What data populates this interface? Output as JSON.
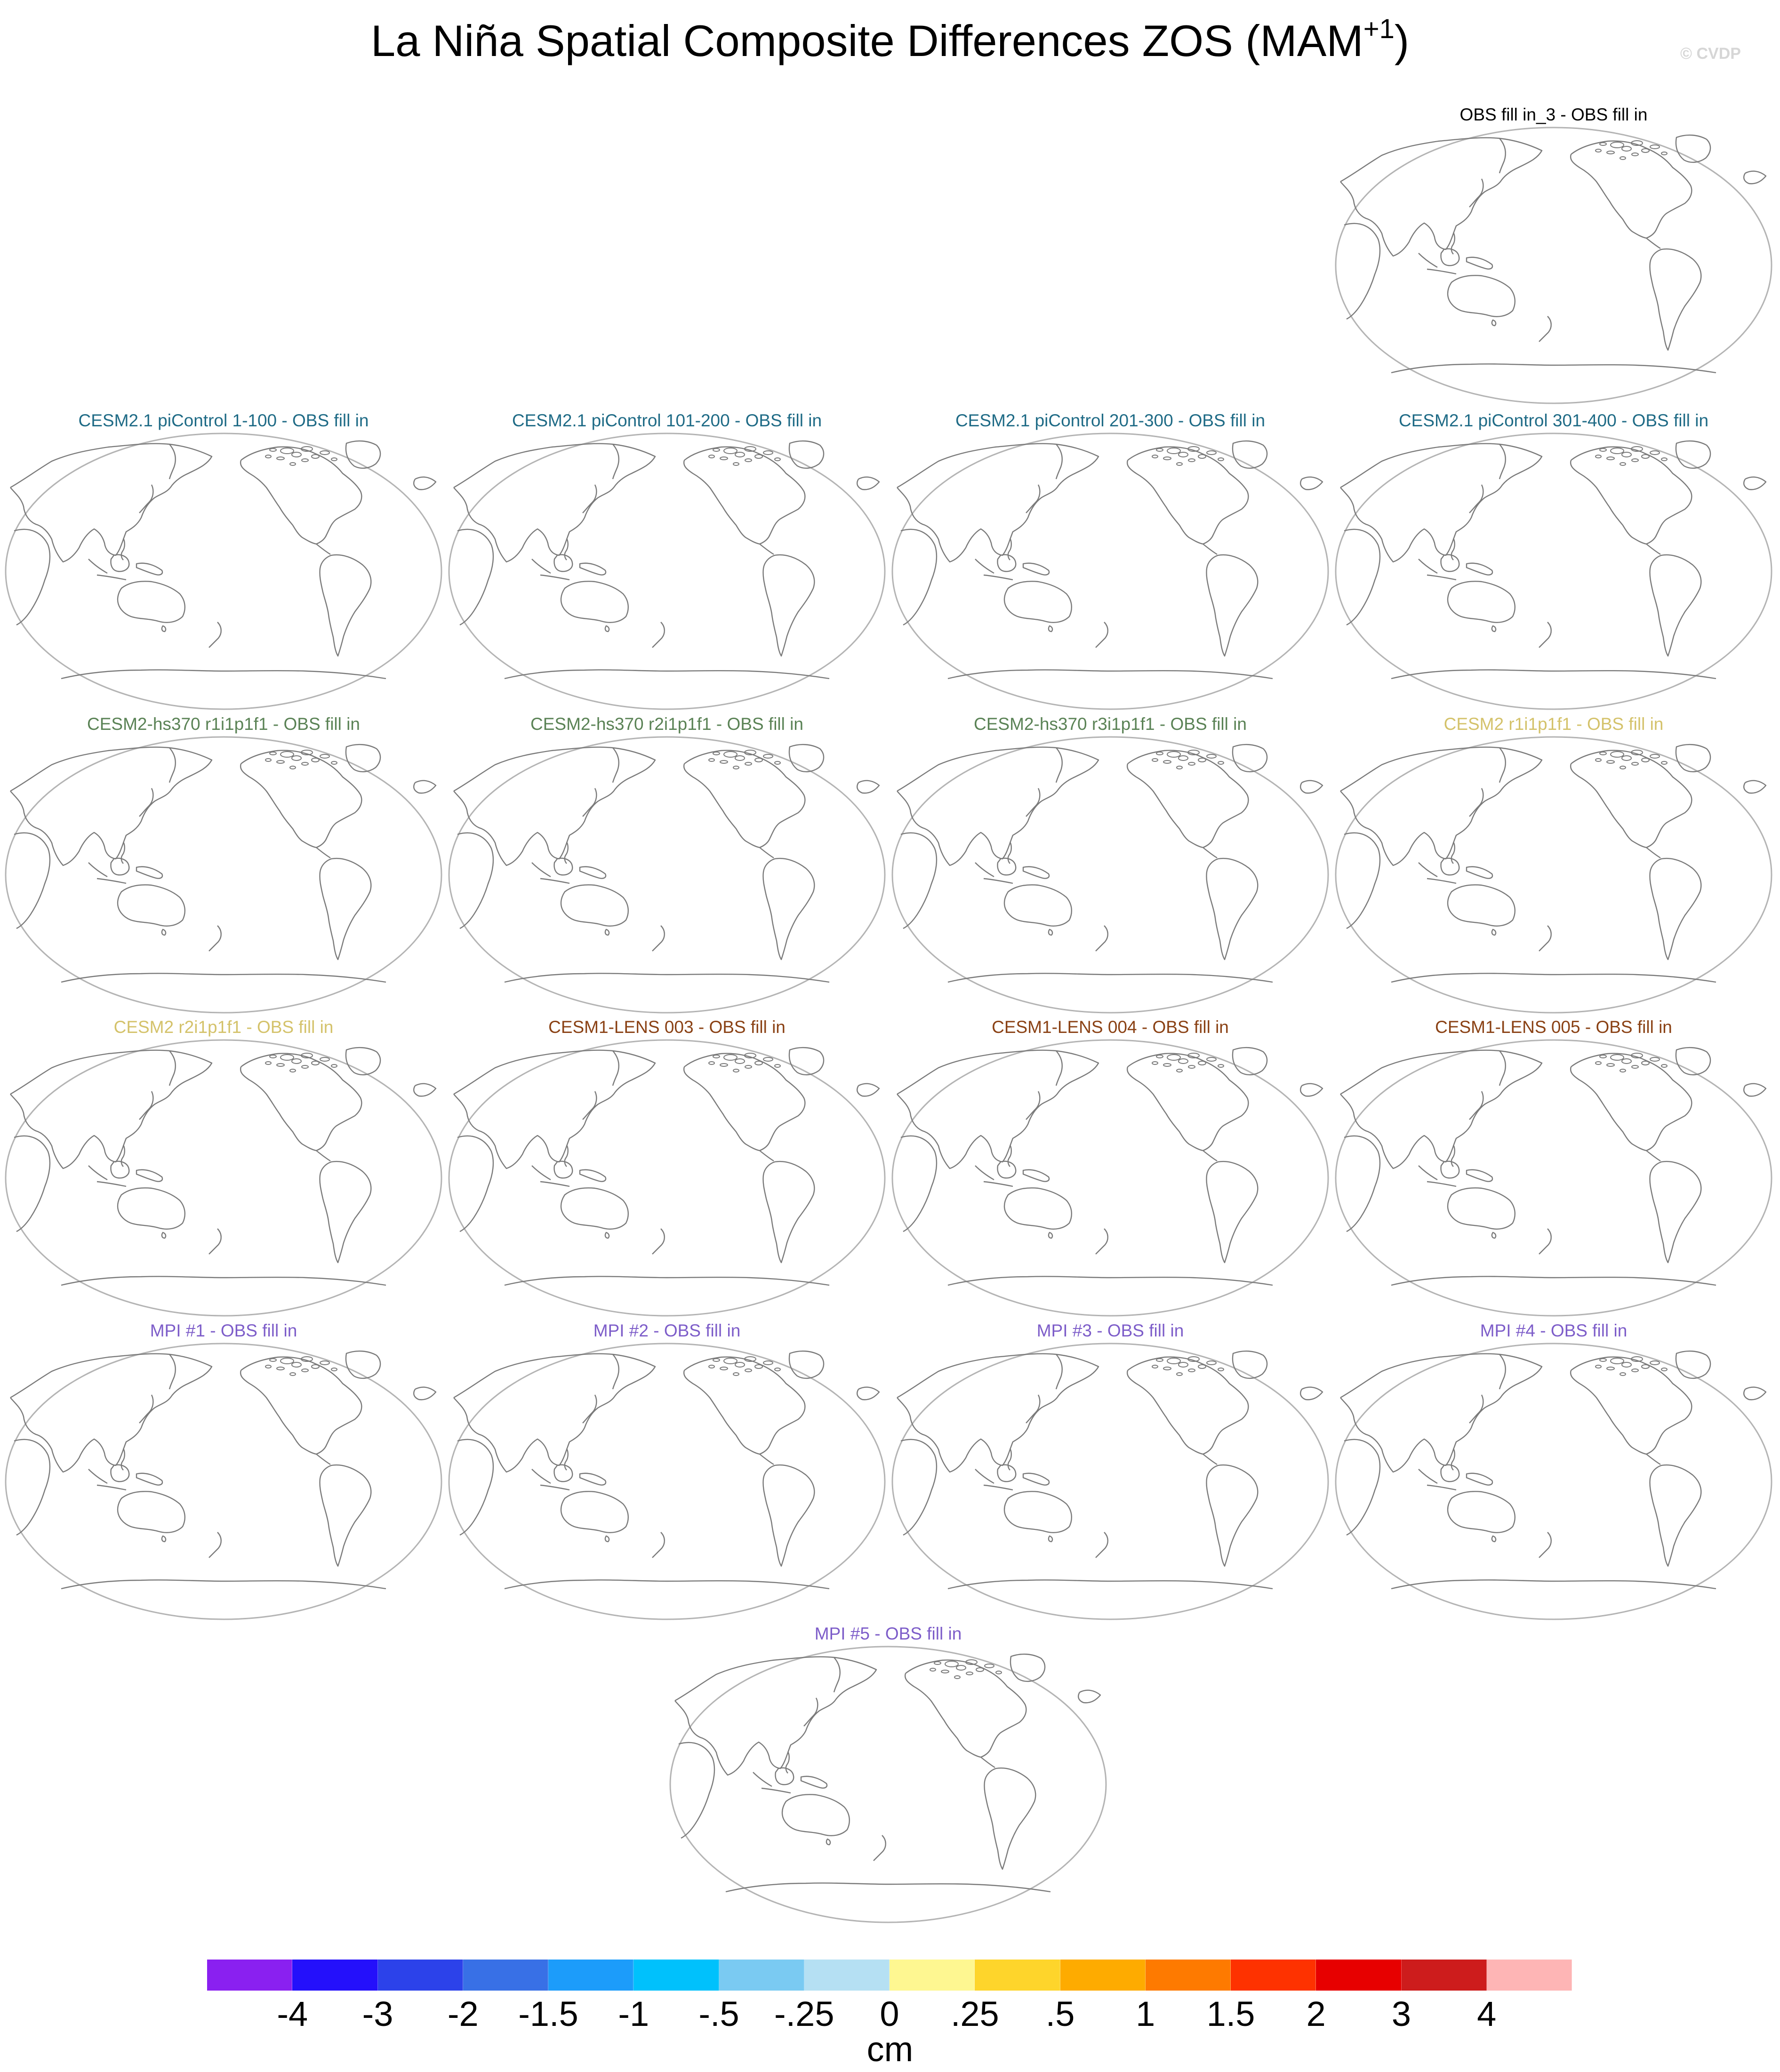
{
  "title": "La Niña Spatial Composite Differences ZOS (MAM",
  "title_superscript": "+1",
  "title_suffix": ")",
  "credit": "© CVDP",
  "map_projection": "robinson",
  "map_center_longitude": 180,
  "colors": {
    "coastline": "#7a7a7a",
    "map_border": "#b4b4b4",
    "obs": "#000000",
    "cesm21_picontrol": "#1f6b86",
    "cesm2_hs370": "#5a8255",
    "cesm2": "#d4c26a",
    "cesm1_lens": "#8a4114",
    "mpi": "#7d5dc9"
  },
  "panels": [
    {
      "title": "OBS fill in_3 - OBS fill in",
      "color": "#000000"
    },
    {
      "title": "CESM2.1 piControl 1-100 - OBS fill in",
      "color": "#1f6b86"
    },
    {
      "title": "CESM2.1 piControl 101-200 - OBS fill in",
      "color": "#1f6b86"
    },
    {
      "title": "CESM2.1 piControl 201-300 - OBS fill in",
      "color": "#1f6b86"
    },
    {
      "title": "CESM2.1 piControl 301-400 - OBS fill in",
      "color": "#1f6b86"
    },
    {
      "title": "CESM2-hs370 r1i1p1f1 - OBS fill in",
      "color": "#5a8255"
    },
    {
      "title": "CESM2-hs370 r2i1p1f1 - OBS fill in",
      "color": "#5a8255"
    },
    {
      "title": "CESM2-hs370 r3i1p1f1 - OBS fill in",
      "color": "#5a8255"
    },
    {
      "title": "CESM2 r1i1p1f1 - OBS fill in",
      "color": "#d4c26a"
    },
    {
      "title": "CESM2 r2i1p1f1 - OBS fill in",
      "color": "#d4c26a"
    },
    {
      "title": "CESM1-LENS 003 - OBS fill in",
      "color": "#8a4114"
    },
    {
      "title": "CESM1-LENS 004 - OBS fill in",
      "color": "#8a4114"
    },
    {
      "title": "CESM1-LENS 005 - OBS fill in",
      "color": "#8a4114"
    },
    {
      "title": "MPI #1 - OBS fill in",
      "color": "#7d5dc9"
    },
    {
      "title": "MPI #2 - OBS fill in",
      "color": "#7d5dc9"
    },
    {
      "title": "MPI #3 - OBS fill in",
      "color": "#7d5dc9"
    },
    {
      "title": "MPI #4 - OBS fill in",
      "color": "#7d5dc9"
    },
    {
      "title": "MPI #5 - OBS fill in",
      "color": "#7d5dc9"
    }
  ],
  "colorbar": {
    "unit": "cm",
    "tick_labels": [
      "-4",
      "-3",
      "-2",
      "-1.5",
      "-1",
      "-.5",
      "-.25",
      "0",
      ".25",
      ".5",
      "1",
      "1.5",
      "2",
      "3",
      "4"
    ],
    "colors": [
      "#8a20f0",
      "#2410fb",
      "#2c42ea",
      "#3870e6",
      "#1c9cfa",
      "#00c1fc",
      "#7acaf2",
      "#b5e0f3",
      "#fef791",
      "#fed52b",
      "#feab00",
      "#fe7a00",
      "#fe3200",
      "#e70000",
      "#cd1c1c",
      "#feb5b5"
    ]
  }
}
